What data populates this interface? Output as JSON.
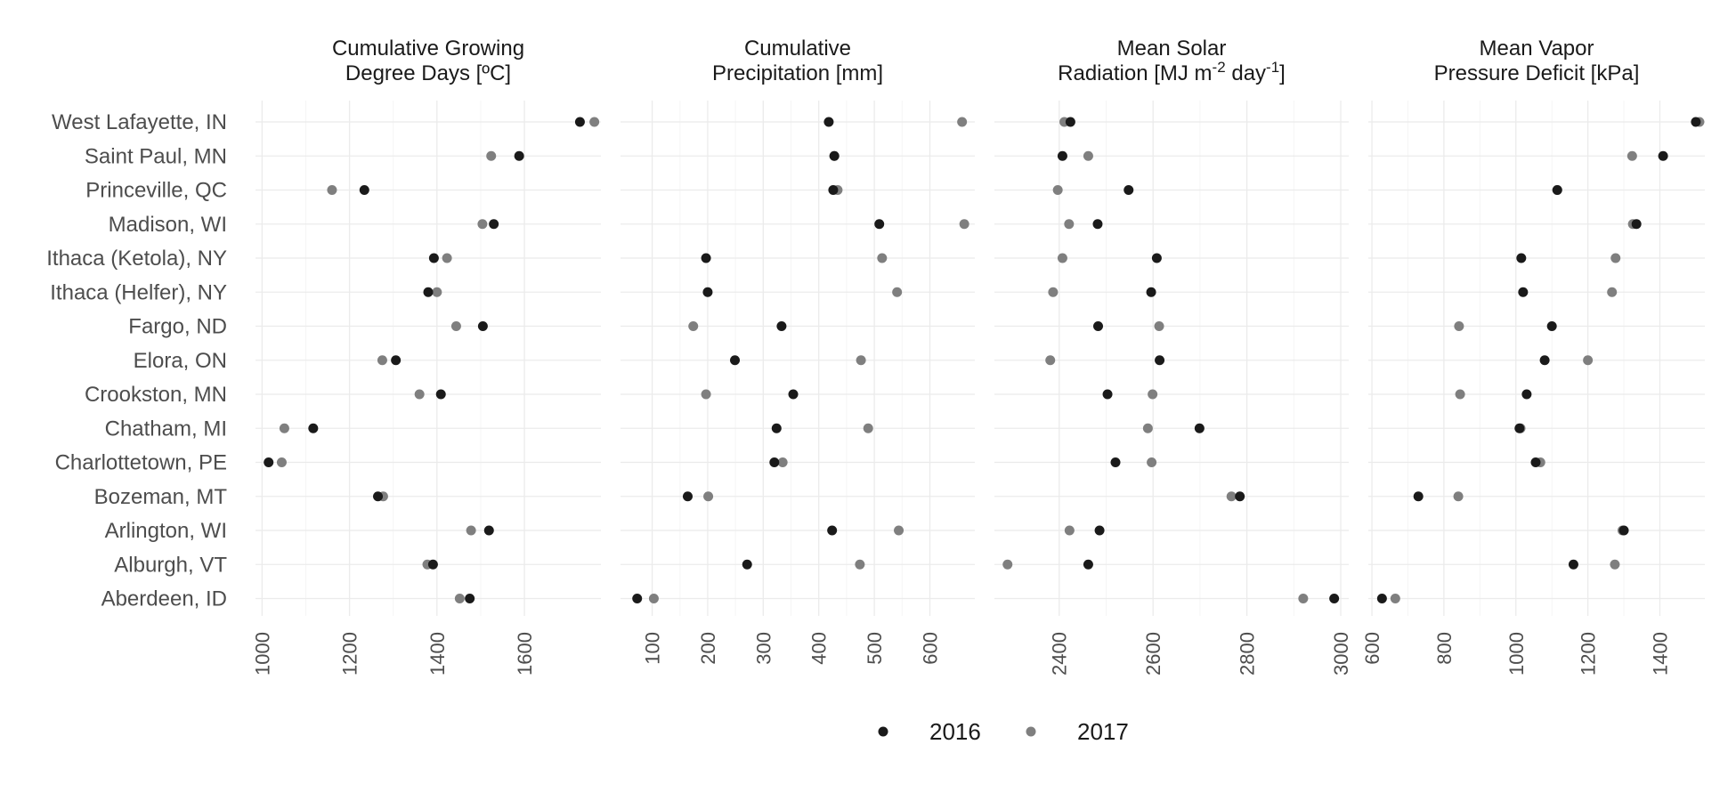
{
  "chart_data": {
    "type": "scatter",
    "colors": {
      "2016": "#1a1a1a",
      "2017": "#7f7f7f"
    },
    "legend": {
      "position": "bottom",
      "entries": [
        "2016",
        "2017"
      ]
    },
    "grid": true,
    "sites": [
      "West Lafayette, IN",
      "Saint Paul, MN",
      "Princeville, QC",
      "Madison, WI",
      "Ithaca (Ketola), NY",
      "Ithaca (Helfer), NY",
      "Fargo, ND",
      "Elora, ON",
      "Crookston, MN",
      "Chatham, MI",
      "Charlottetown, PE",
      "Bozeman, MT",
      "Arlington, WI",
      "Alburgh, VT",
      "Aberdeen, ID"
    ],
    "panels": [
      {
        "title_lines": [
          "Cumulative Growing",
          "Degree Days [ºC]"
        ],
        "xlim": [
          985,
          1775
        ],
        "ticks": [
          1000,
          1200,
          1400,
          1600
        ],
        "series": [
          {
            "name": "2016",
            "values": [
              1727,
              1588,
              1234,
              1530,
              1393,
              1380,
              1505,
              1306,
              1409,
              1117,
              1015,
              1265,
              1519,
              1391,
              1475
            ]
          },
          {
            "name": "2017",
            "values": [
              1760,
              1524,
              1160,
              1504,
              1423,
              1400,
              1444,
              1275,
              1360,
              1051,
              1045,
              1277,
              1478,
              1378,
              1452
            ]
          }
        ]
      },
      {
        "title_lines": [
          "Cumulative",
          "Precipitation [mm]"
        ],
        "xlim": [
          43,
          681
        ],
        "ticks": [
          100,
          200,
          300,
          400,
          500,
          600
        ],
        "series": [
          {
            "name": "2016",
            "values": [
              418,
              428,
              426,
              509,
              197,
              200,
              333,
              249,
              354,
              324,
              320,
              164,
              424,
              271,
              73
            ]
          },
          {
            "name": "2017",
            "values": [
              658,
              428,
              434,
              662,
              514,
              541,
              174,
              476,
              197,
              489,
              335,
              201,
              544,
              474,
              103
            ]
          }
        ]
      },
      {
        "title_lines": [
          "Mean Solar",
          "Radiation [MJ m-2 day-1]"
        ],
        "xlim": [
          2262,
          3017
        ],
        "ticks": [
          2400,
          2600,
          2800,
          3000
        ],
        "series": [
          {
            "name": "2016",
            "values": [
              2424,
              2407,
              2548,
              2482,
              2608,
              2596,
              2483,
              2614,
              2503,
              2699,
              2520,
              2785,
              2486,
              2462,
              2986
            ]
          },
          {
            "name": "2017",
            "values": [
              2411,
              2462,
              2397,
              2421,
              2407,
              2387,
              2613,
              2381,
              2599,
              2589,
              2597,
              2767,
              2422,
              2290,
              2920
            ]
          }
        ]
      },
      {
        "title_lines": [
          "Mean Vapor",
          "Pressure Deficit [kPa]"
        ],
        "xlim": [
          590,
          1525
        ],
        "ticks": [
          600,
          800,
          1000,
          1200,
          1400
        ],
        "series": [
          {
            "name": "2016",
            "values": [
              1500,
              1409,
              1115,
              1335,
              1015,
              1020,
              1100,
              1080,
              1030,
              1010,
              1055,
              729,
              1300,
              1160,
              628
            ]
          },
          {
            "name": "2017",
            "values": [
              1510,
              1323,
              1115,
              1325,
              1277,
              1267,
              842,
              1200,
              845,
              1013,
              1068,
              840,
              1296,
              1275,
              665
            ]
          }
        ]
      }
    ]
  }
}
